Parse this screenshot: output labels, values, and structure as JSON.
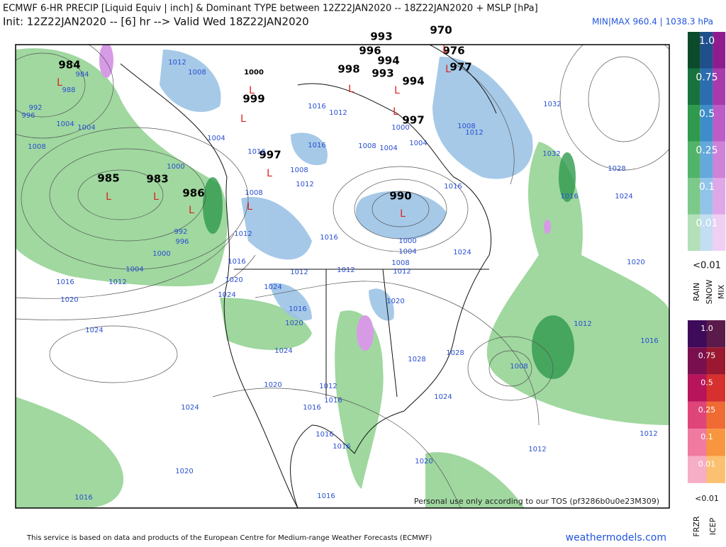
{
  "header": {
    "title": "ECMWF 6-HR PRECIP [Liquid Equiv | inch] & Dominant TYPE between 12Z22JAN2020 -- 18Z22JAN2020 + MSLP [hPa]",
    "init": "Init: 12Z22JAN2020 -- [6] hr --> Valid Wed 18Z22JAN2020",
    "minmax": "MIN|MAX 960.4 | 1038.3 hPa"
  },
  "legend": {
    "levels": [
      "1.0",
      "0.75",
      "0.5",
      "0.25",
      "0.1",
      "0.01"
    ],
    "below": "<0.01",
    "rain": "RAIN",
    "snow": "SNOW",
    "mix": "MIX",
    "ice_levels": [
      "1.0",
      "0.75",
      "0.5",
      "0.25",
      "0.1",
      "0.01"
    ],
    "ice_below": "<0.01",
    "frzr": "FRZR",
    "icep": "ICEP"
  },
  "map": {
    "low_symbol": "L",
    "pressure_centers": [
      984,
      985,
      983,
      986,
      997,
      999,
      1000,
      993,
      996,
      994,
      998,
      993,
      970,
      976,
      977,
      994,
      997,
      990
    ],
    "isobar_labels": [
      1012,
      1008,
      1004,
      1000,
      1004,
      1004,
      1008,
      992,
      996,
      988,
      984,
      992,
      996,
      1000,
      1004,
      1012,
      1016,
      1020,
      1024,
      1016,
      1012,
      1008,
      1016,
      1008,
      1012,
      1016,
      1016,
      1012,
      1008,
      1004,
      1000,
      1004,
      1008,
      1012,
      1032,
      1032,
      1028,
      1024,
      1016,
      1016,
      1024,
      1000,
      1004,
      1008,
      1012,
      1012,
      1016,
      1012,
      1020,
      1024,
      1024,
      1016,
      1020,
      1024,
      1020,
      1028,
      1028,
      1024,
      1012,
      1016,
      1016,
      1020,
      1016,
      1016,
      1024,
      1020,
      1016,
      1020,
      1016,
      1012,
      1016,
      1008,
      1012,
      1012,
      1020
    ],
    "watermark": "Personal use only according to our TOS (pf3286b0u0e23M309)"
  },
  "footer": {
    "credit": "This service is based on data and products of the European Centre for Medium-range Weather Forecasts (ECMWF)",
    "brand": "weathermodels.com"
  }
}
